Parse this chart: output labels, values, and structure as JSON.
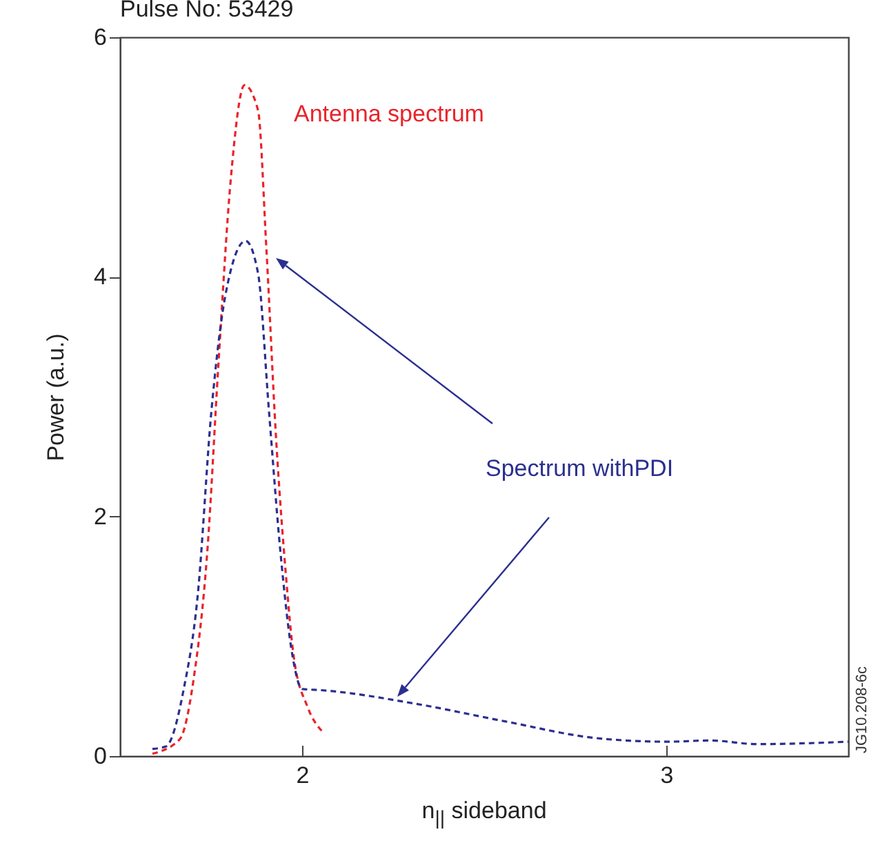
{
  "chart_data": {
    "type": "line",
    "title": "Pulse No: 53429",
    "xlabel": "n$_{||}$ sideband",
    "ylabel": "Power (a.u.)",
    "xlim": [
      1.5,
      3.5
    ],
    "xticks": [
      2,
      3
    ],
    "ylim": [
      0,
      6
    ],
    "yticks": [
      0,
      2,
      4,
      6
    ],
    "grid": false,
    "legend": false,
    "marker": "none",
    "line_style": "dashed",
    "annotations": [
      "JG10.208-6c"
    ],
    "series": [
      {
        "name": "Antenna spectrum",
        "color": "#e8242b",
        "x": [
          1.589,
          1.664,
          1.702,
          1.74,
          1.77,
          1.804,
          1.842,
          1.879,
          1.902,
          1.928,
          1.955,
          1.977,
          2.015,
          2.057
        ],
        "values": [
          0.02,
          0.14,
          0.64,
          1.72,
          3.26,
          4.81,
          5.6,
          5.39,
          4.23,
          2.68,
          1.53,
          0.83,
          0.41,
          0.2
        ]
      },
      {
        "name": "Spectrum withPDI",
        "color": "#2b2f8f",
        "x": [
          1.589,
          1.626,
          1.675,
          1.713,
          1.751,
          1.789,
          1.845,
          1.879,
          1.909,
          1.94,
          1.974,
          2.0,
          2.054,
          2.306,
          2.557,
          2.808,
          3.0,
          3.12,
          3.25,
          3.5
        ],
        "values": [
          0.06,
          0.08,
          0.56,
          1.33,
          2.88,
          3.84,
          4.3,
          4.03,
          2.88,
          1.72,
          0.83,
          0.56,
          0.55,
          0.44,
          0.29,
          0.15,
          0.12,
          0.13,
          0.1,
          0.12
        ]
      }
    ]
  }
}
